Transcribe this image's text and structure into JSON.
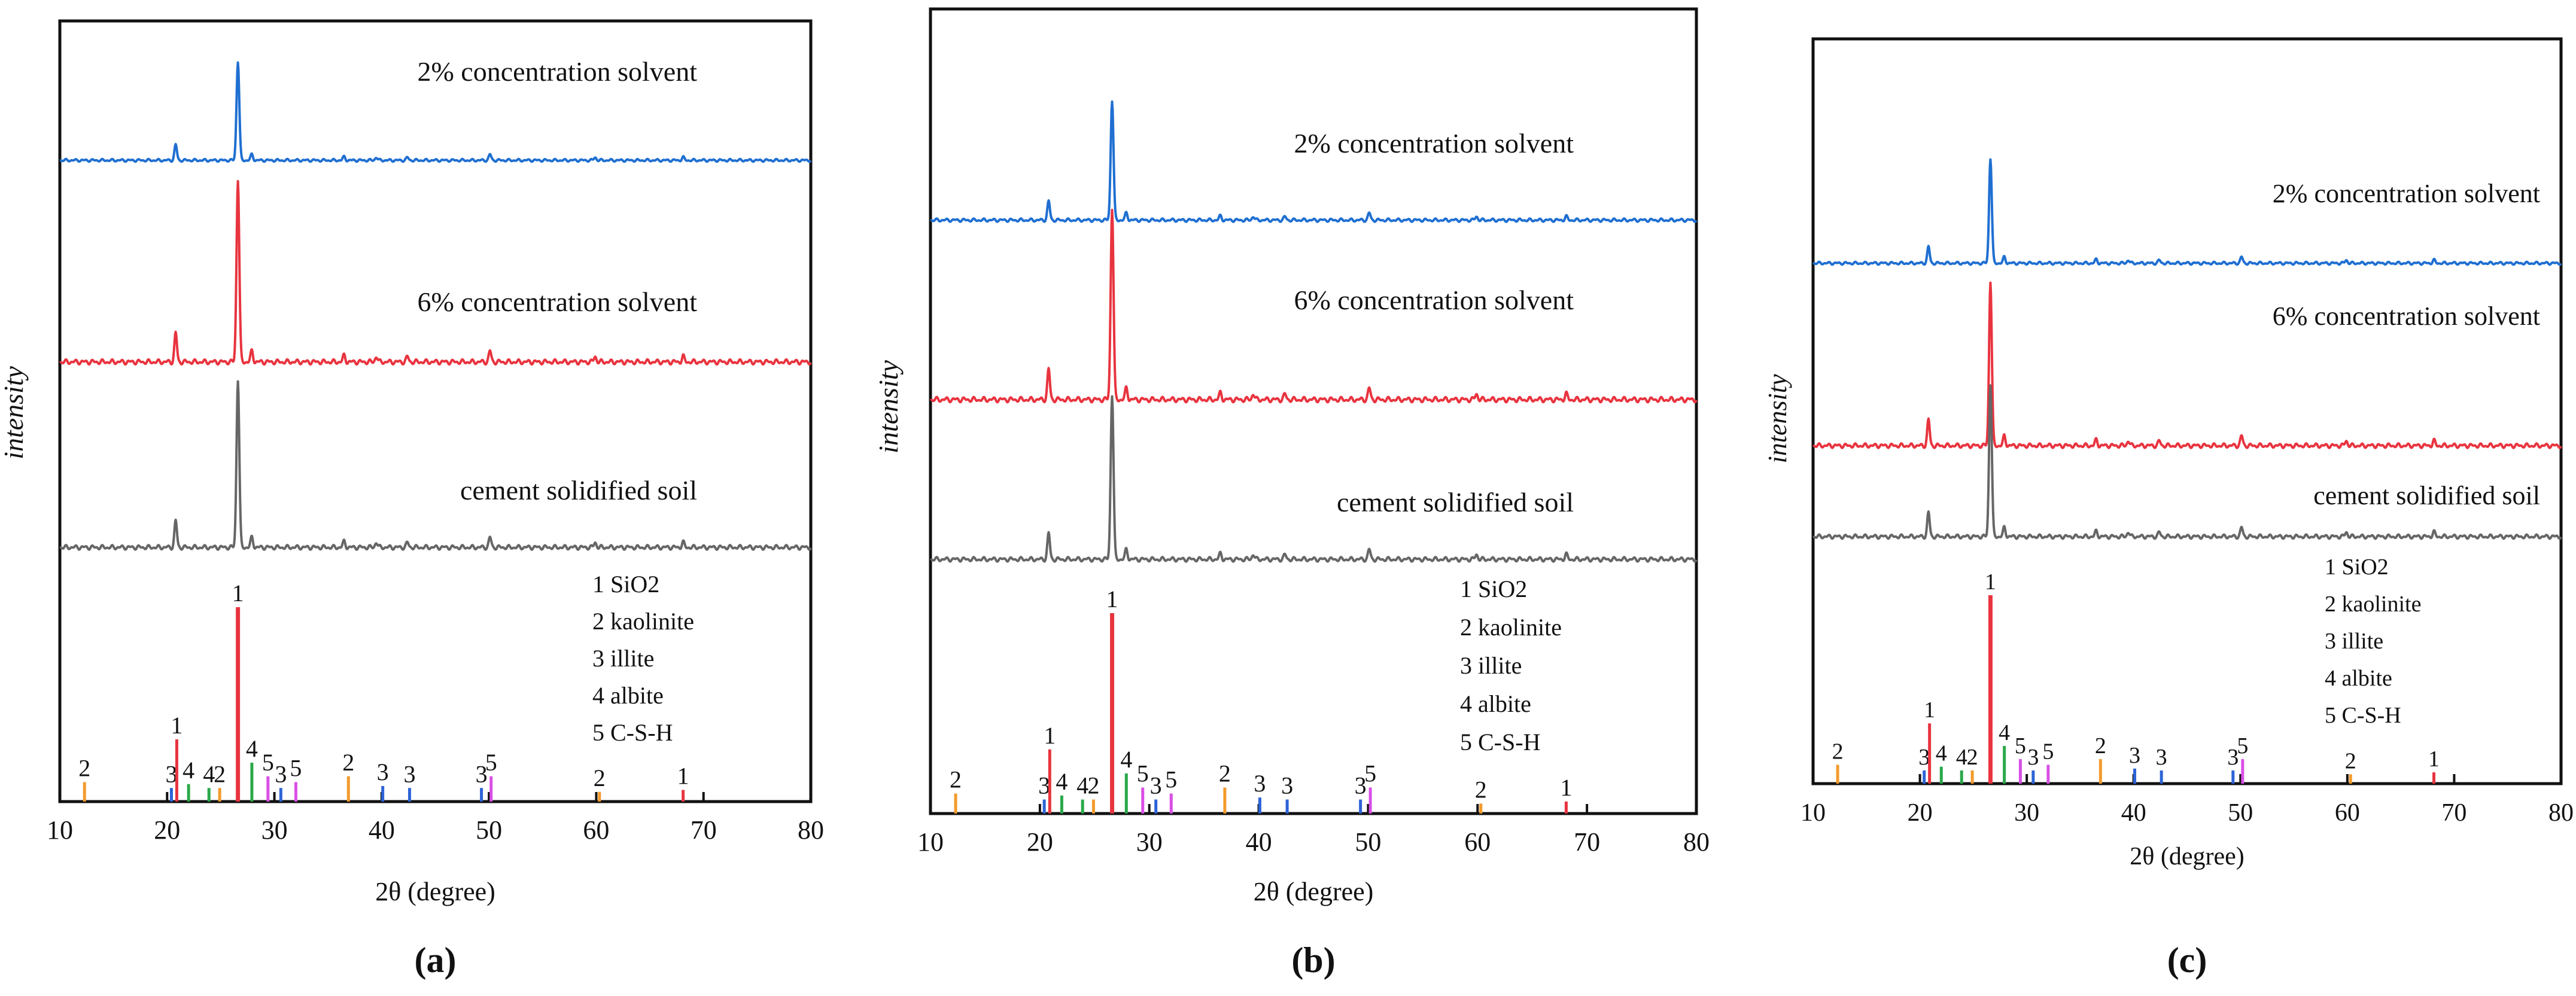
{
  "figure": {
    "panel_captions": [
      "(a)",
      "(b)",
      "(c)"
    ]
  },
  "chart_data": [
    {
      "type": "line",
      "panel": "(a)",
      "xlabel": "2θ (degree)",
      "ylabel": "intensity",
      "xlim": [
        10,
        80
      ],
      "xticks": [
        10,
        20,
        30,
        40,
        50,
        60,
        70,
        80
      ],
      "grid": false,
      "series": [
        {
          "name": "2% concentration solvent",
          "color": "#1f6fd1",
          "main_peak_2theta": 26.6,
          "minor_peaks_2theta": [
            20.8,
            27.9,
            36.5,
            39.5,
            42.4,
            50.1,
            59.9,
            68.1
          ]
        },
        {
          "name": "6% concentration solvent",
          "color": "#e8343f",
          "main_peak_2theta": 26.6,
          "minor_peaks_2theta": [
            20.8,
            27.9,
            36.5,
            39.5,
            42.4,
            50.1,
            59.9,
            68.1
          ]
        },
        {
          "name": "cement solidified soil",
          "color": "#666666",
          "main_peak_2theta": 26.6,
          "minor_peaks_2theta": [
            20.8,
            27.9,
            36.5,
            39.5,
            42.4,
            50.1,
            59.9,
            68.1
          ]
        }
      ],
      "phase_legend": [
        "1 SiO2",
        "2 kaolinite",
        "3 illite",
        "4 albite",
        "5 C-S-H"
      ],
      "reference_peaks": [
        {
          "label": "2",
          "x": 12.3,
          "h": 0.1
        },
        {
          "label": "3",
          "x": 20.4,
          "h": 0.07
        },
        {
          "label": "1",
          "x": 20.9,
          "h": 0.32
        },
        {
          "label": "4",
          "x": 22.0,
          "h": 0.09
        },
        {
          "label": "4",
          "x": 23.9,
          "h": 0.07
        },
        {
          "label": "2",
          "x": 24.9,
          "h": 0.07
        },
        {
          "label": "1",
          "x": 26.6,
          "h": 1.0
        },
        {
          "label": "4",
          "x": 27.9,
          "h": 0.2
        },
        {
          "label": "5",
          "x": 29.4,
          "h": 0.13
        },
        {
          "label": "3",
          "x": 30.6,
          "h": 0.07
        },
        {
          "label": "5",
          "x": 32.0,
          "h": 0.1
        },
        {
          "label": "2",
          "x": 36.9,
          "h": 0.13
        },
        {
          "label": "3",
          "x": 40.1,
          "h": 0.08
        },
        {
          "label": "3",
          "x": 42.6,
          "h": 0.07
        },
        {
          "label": "3",
          "x": 49.3,
          "h": 0.07
        },
        {
          "label": "5",
          "x": 50.2,
          "h": 0.13
        },
        {
          "label": "2",
          "x": 60.3,
          "h": 0.05
        },
        {
          "label": "1",
          "x": 68.1,
          "h": 0.06
        }
      ]
    },
    {
      "type": "line",
      "panel": "(b)",
      "xlabel": "2θ (degree)",
      "ylabel": "intensity",
      "xlim": [
        10,
        80
      ],
      "xticks": [
        10,
        20,
        30,
        40,
        50,
        60,
        70,
        80
      ],
      "grid": false,
      "series": [
        {
          "name": "2% concentration solvent",
          "color": "#1f6fd1",
          "main_peak_2theta": 26.6,
          "minor_peaks_2theta": [
            20.8,
            27.9,
            36.5,
            39.5,
            42.4,
            50.1,
            59.9,
            68.1
          ]
        },
        {
          "name": "6% concentration solvent",
          "color": "#e8343f",
          "main_peak_2theta": 26.6,
          "minor_peaks_2theta": [
            20.8,
            27.9,
            36.5,
            39.5,
            42.4,
            50.1,
            59.9,
            68.1
          ]
        },
        {
          "name": "cement solidified soil",
          "color": "#666666",
          "main_peak_2theta": 26.6,
          "minor_peaks_2theta": [
            20.8,
            27.9,
            36.5,
            39.5,
            42.4,
            50.1,
            59.9,
            68.1
          ]
        }
      ],
      "phase_legend": [
        "1 SiO2",
        "2 kaolinite",
        "3 illite",
        "4 albite",
        "5 C-S-H"
      ],
      "reference_peaks": [
        {
          "label": "2",
          "x": 12.3,
          "h": 0.1
        },
        {
          "label": "3",
          "x": 20.4,
          "h": 0.07
        },
        {
          "label": "1",
          "x": 20.9,
          "h": 0.32
        },
        {
          "label": "4",
          "x": 22.0,
          "h": 0.09
        },
        {
          "label": "4",
          "x": 23.9,
          "h": 0.07
        },
        {
          "label": "2",
          "x": 24.9,
          "h": 0.07
        },
        {
          "label": "1",
          "x": 26.6,
          "h": 1.0
        },
        {
          "label": "4",
          "x": 27.9,
          "h": 0.2
        },
        {
          "label": "5",
          "x": 29.4,
          "h": 0.13
        },
        {
          "label": "3",
          "x": 30.6,
          "h": 0.07
        },
        {
          "label": "5",
          "x": 32.0,
          "h": 0.1
        },
        {
          "label": "2",
          "x": 36.9,
          "h": 0.13
        },
        {
          "label": "3",
          "x": 40.1,
          "h": 0.08
        },
        {
          "label": "3",
          "x": 42.6,
          "h": 0.07
        },
        {
          "label": "3",
          "x": 49.3,
          "h": 0.07
        },
        {
          "label": "5",
          "x": 50.2,
          "h": 0.13
        },
        {
          "label": "2",
          "x": 60.3,
          "h": 0.05
        },
        {
          "label": "1",
          "x": 68.1,
          "h": 0.06
        }
      ]
    },
    {
      "type": "line",
      "panel": "(c)",
      "xlabel": "2θ (degree)",
      "ylabel": "intensity",
      "xlim": [
        10,
        80
      ],
      "xticks": [
        10,
        20,
        30,
        40,
        50,
        60,
        70,
        80
      ],
      "grid": false,
      "series": [
        {
          "name": "2% concentration solvent",
          "color": "#1f6fd1",
          "main_peak_2theta": 26.6,
          "minor_peaks_2theta": [
            20.8,
            27.9,
            36.5,
            39.5,
            42.4,
            50.1,
            59.9,
            68.1
          ]
        },
        {
          "name": "6% concentration solvent",
          "color": "#e8343f",
          "main_peak_2theta": 26.6,
          "minor_peaks_2theta": [
            20.8,
            27.9,
            36.5,
            39.5,
            42.4,
            50.1,
            59.9,
            68.1
          ]
        },
        {
          "name": "cement solidified soil",
          "color": "#666666",
          "main_peak_2theta": 26.6,
          "minor_peaks_2theta": [
            20.8,
            27.9,
            36.5,
            39.5,
            42.4,
            50.1,
            59.9,
            68.1
          ]
        }
      ],
      "phase_legend": [
        "1 SiO2",
        "2 kaolinite",
        "3 illite",
        "4 albite",
        "5 C-S-H"
      ],
      "reference_peaks": [
        {
          "label": "2",
          "x": 12.3,
          "h": 0.1
        },
        {
          "label": "3",
          "x": 20.4,
          "h": 0.07
        },
        {
          "label": "1",
          "x": 20.9,
          "h": 0.32
        },
        {
          "label": "4",
          "x": 22.0,
          "h": 0.09
        },
        {
          "label": "4",
          "x": 23.9,
          "h": 0.07
        },
        {
          "label": "2",
          "x": 24.9,
          "h": 0.07
        },
        {
          "label": "1",
          "x": 26.6,
          "h": 1.0
        },
        {
          "label": "4",
          "x": 27.9,
          "h": 0.2
        },
        {
          "label": "5",
          "x": 29.4,
          "h": 0.13
        },
        {
          "label": "3",
          "x": 30.6,
          "h": 0.07
        },
        {
          "label": "5",
          "x": 32.0,
          "h": 0.1
        },
        {
          "label": "2",
          "x": 36.9,
          "h": 0.13
        },
        {
          "label": "3",
          "x": 40.1,
          "h": 0.08
        },
        {
          "label": "3",
          "x": 42.6,
          "h": 0.07
        },
        {
          "label": "3",
          "x": 49.3,
          "h": 0.07
        },
        {
          "label": "5",
          "x": 50.2,
          "h": 0.13
        },
        {
          "label": "2",
          "x": 60.3,
          "h": 0.05
        },
        {
          "label": "1",
          "x": 68.1,
          "h": 0.06
        }
      ]
    }
  ]
}
